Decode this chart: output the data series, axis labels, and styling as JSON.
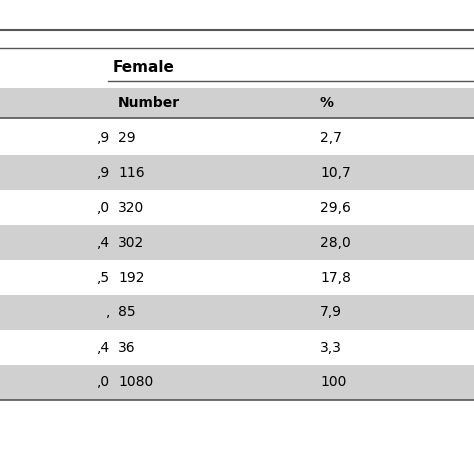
{
  "title": "Female",
  "col2_header": "Number",
  "col3_header": "%",
  "rows": [
    {
      "age": ",9",
      "number": "29",
      "pct": "2,7"
    },
    {
      "age": ",9",
      "number": "116",
      "pct": "10,7"
    },
    {
      "age": ",0",
      "number": "320",
      "pct": "29,6"
    },
    {
      "age": ",4",
      "number": "302",
      "pct": "28,0"
    },
    {
      "age": ",5",
      "number": "192",
      "pct": "17,8"
    },
    {
      "age": ",",
      "number": "85",
      "pct": "7,9"
    },
    {
      "age": ",4",
      "number": "36",
      "pct": "3,3"
    },
    {
      "age": ",0",
      "number": "1080",
      "pct": "100"
    }
  ],
  "bg_color": "#ffffff",
  "header_bg": "#d0d0d0",
  "row_alt_bg": "#d0d0d0",
  "row_white_bg": "#ffffff",
  "line_color": "#555555",
  "fig_width": 4.74,
  "fig_height": 4.74,
  "dpi": 100
}
